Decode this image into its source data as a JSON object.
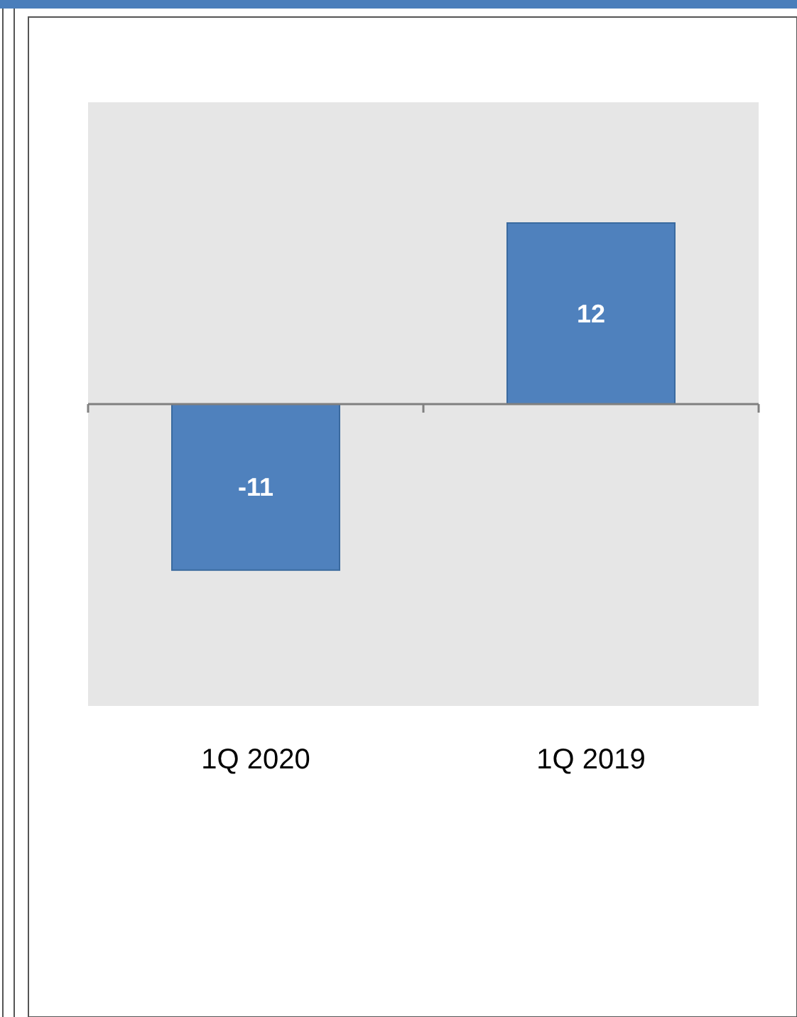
{
  "chart_data": {
    "type": "bar",
    "categories": [
      "1Q 2020",
      "1Q 2019"
    ],
    "values": [
      -11,
      12
    ],
    "color": "#4f81bd",
    "ylim": [
      -20,
      20
    ],
    "data_labels": true
  }
}
